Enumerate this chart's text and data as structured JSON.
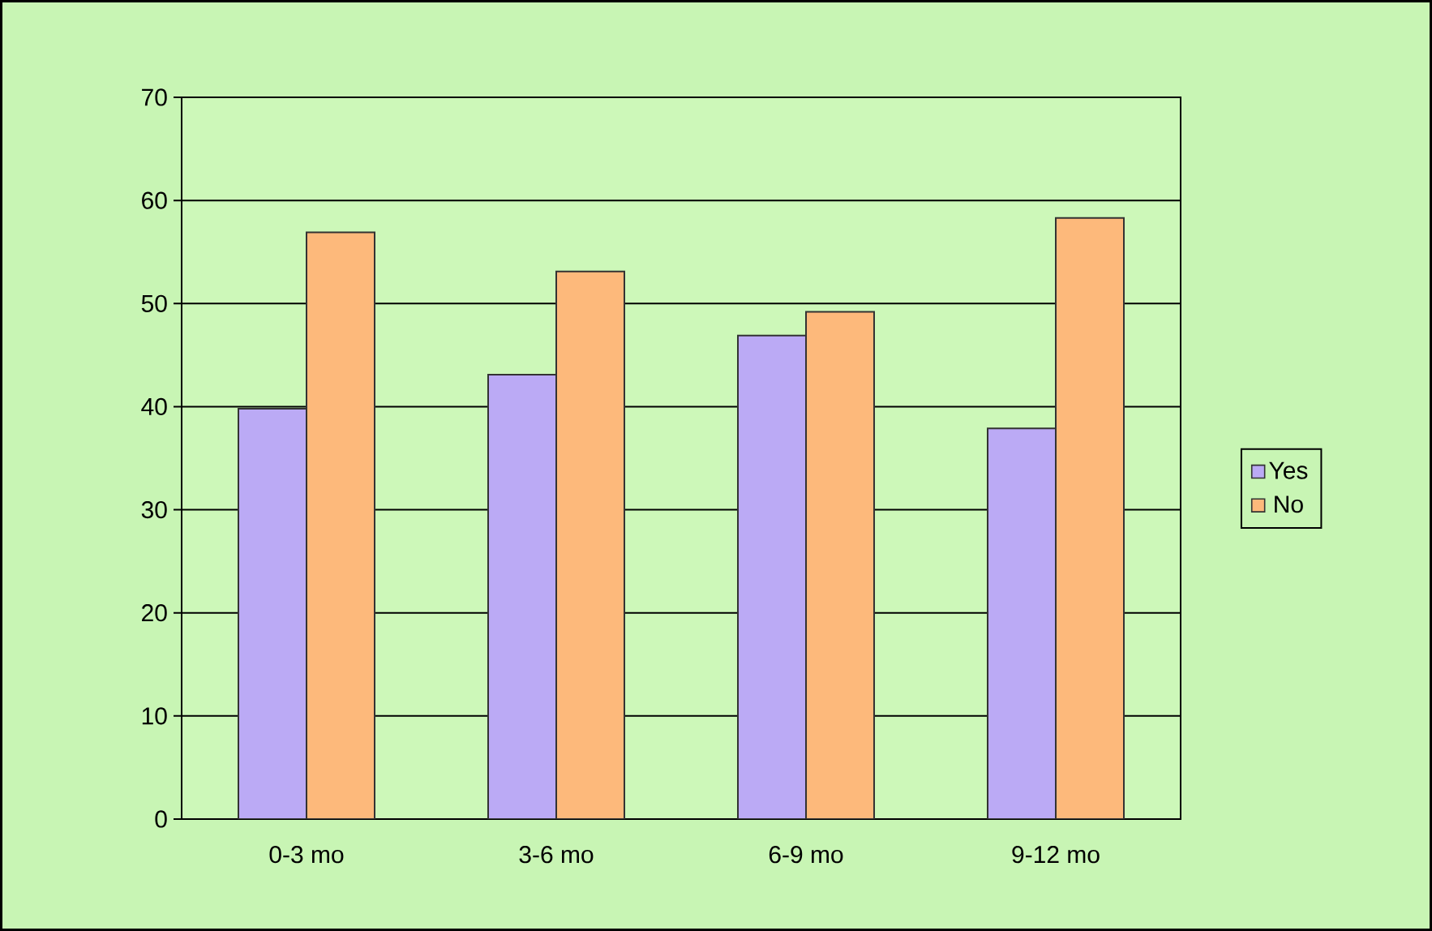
{
  "chart_data": {
    "type": "bar",
    "categories": [
      "0-3 mo",
      "3-6 mo",
      "6-9 mo",
      "9-12 mo"
    ],
    "series": [
      {
        "name": "Yes",
        "color": "#bbaaf5",
        "values": [
          39.8,
          43.1,
          46.9,
          37.9
        ]
      },
      {
        "name": "No",
        "color": "#fdb97b",
        "values": [
          56.9,
          53.1,
          49.2,
          58.3
        ]
      }
    ],
    "ylim": [
      0,
      70
    ],
    "yticks": [
      0,
      10,
      20,
      30,
      40,
      50,
      60,
      70
    ],
    "grid": "y",
    "legend": "right"
  }
}
